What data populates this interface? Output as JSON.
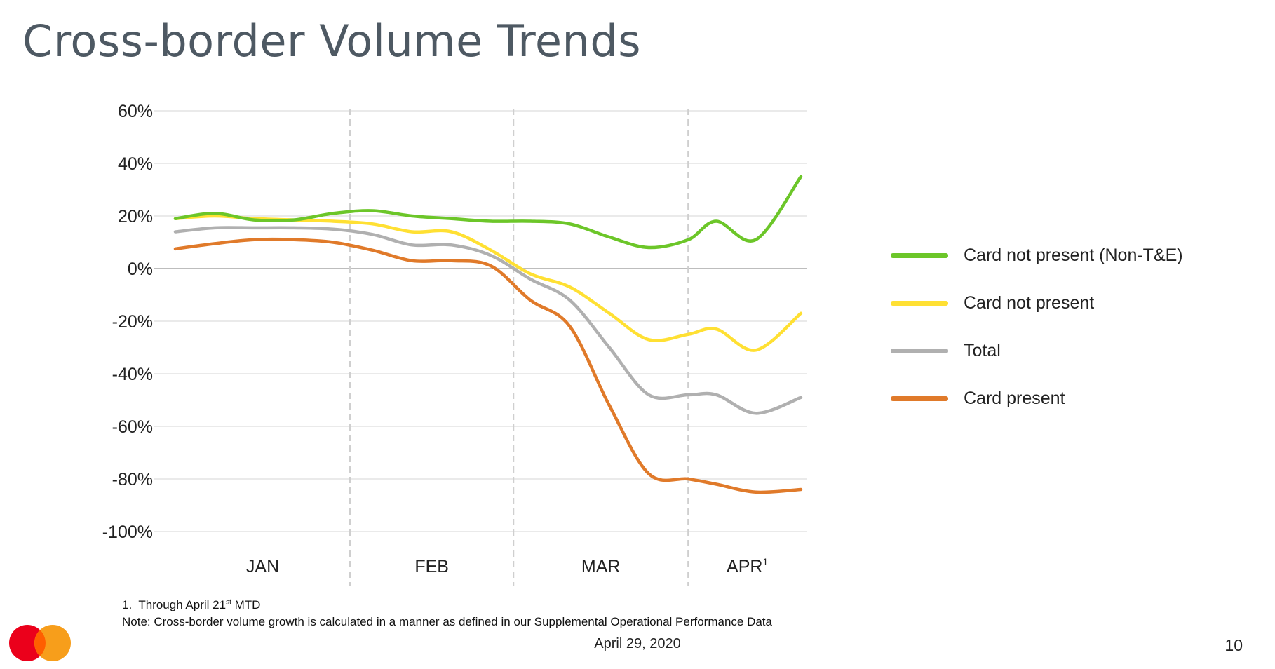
{
  "slide": {
    "title": "Cross-border Volume Trends",
    "footnote_number": "1.",
    "footnote_text_before": "Through April 21",
    "footnote_superscript": "st",
    "footnote_text_after": " MTD",
    "note": "Note: Cross-border volume growth is calculated in a manner as defined in our Supplemental Operational Performance Data",
    "date": "April 29, 2020",
    "page_number": "10",
    "logo_icon": "mastercard-logo-icon"
  },
  "chart_data": {
    "type": "line",
    "title": "",
    "xlabel": "",
    "ylabel": "",
    "ylim": [
      -100,
      60
    ],
    "yticks": [
      60,
      40,
      20,
      0,
      -20,
      -40,
      -60,
      -80,
      -100
    ],
    "ytick_labels": [
      "60%",
      "40%",
      "20%",
      "0%",
      "-20%",
      "-40%",
      "-60%",
      "-80%",
      "-100%"
    ],
    "months": [
      {
        "label": "JAN",
        "superscript": ""
      },
      {
        "label": "FEB",
        "superscript": ""
      },
      {
        "label": "MAR",
        "superscript": ""
      },
      {
        "label": "APR",
        "superscript": "1"
      }
    ],
    "x_domain": [
      "2020-01-01",
      "2020-04-21"
    ],
    "month_dividers": [
      "2020-02-01",
      "2020-03-01",
      "2020-04-01"
    ],
    "grid": "horizontal",
    "legend_position": "right",
    "series": [
      {
        "name": "Card not present (Non-T&E)",
        "color": "#6cc629",
        "points": [
          [
            "2020-01-01",
            19
          ],
          [
            "2020-01-08",
            21
          ],
          [
            "2020-01-15",
            18.5
          ],
          [
            "2020-01-22",
            18.5
          ],
          [
            "2020-01-29",
            21
          ],
          [
            "2020-02-05",
            22
          ],
          [
            "2020-02-12",
            20
          ],
          [
            "2020-02-19",
            19
          ],
          [
            "2020-02-26",
            18
          ],
          [
            "2020-03-04",
            18
          ],
          [
            "2020-03-11",
            17
          ],
          [
            "2020-03-18",
            12
          ],
          [
            "2020-03-25",
            8
          ],
          [
            "2020-04-01",
            11
          ],
          [
            "2020-04-06",
            18
          ],
          [
            "2020-04-13",
            11
          ],
          [
            "2020-04-21",
            35
          ]
        ]
      },
      {
        "name": "Card not present",
        "color": "#ffe033",
        "points": [
          [
            "2020-01-01",
            19
          ],
          [
            "2020-01-08",
            20
          ],
          [
            "2020-01-15",
            19
          ],
          [
            "2020-01-22",
            18.5
          ],
          [
            "2020-01-29",
            18
          ],
          [
            "2020-02-05",
            17
          ],
          [
            "2020-02-12",
            14
          ],
          [
            "2020-02-19",
            14
          ],
          [
            "2020-02-26",
            7
          ],
          [
            "2020-03-04",
            -2
          ],
          [
            "2020-03-11",
            -7
          ],
          [
            "2020-03-18",
            -17
          ],
          [
            "2020-03-25",
            -27
          ],
          [
            "2020-04-01",
            -25
          ],
          [
            "2020-04-06",
            -23
          ],
          [
            "2020-04-13",
            -31
          ],
          [
            "2020-04-21",
            -17
          ]
        ]
      },
      {
        "name": "Total",
        "color": "#b0b0b0",
        "points": [
          [
            "2020-01-01",
            14
          ],
          [
            "2020-01-08",
            15.5
          ],
          [
            "2020-01-15",
            15.5
          ],
          [
            "2020-01-22",
            15.5
          ],
          [
            "2020-01-29",
            15
          ],
          [
            "2020-02-05",
            13
          ],
          [
            "2020-02-12",
            9
          ],
          [
            "2020-02-19",
            9
          ],
          [
            "2020-02-26",
            5
          ],
          [
            "2020-03-04",
            -4
          ],
          [
            "2020-03-11",
            -12
          ],
          [
            "2020-03-18",
            -30
          ],
          [
            "2020-03-25",
            -48
          ],
          [
            "2020-04-01",
            -48
          ],
          [
            "2020-04-06",
            -48
          ],
          [
            "2020-04-13",
            -55
          ],
          [
            "2020-04-21",
            -49
          ]
        ]
      },
      {
        "name": "Card present",
        "color": "#e07a2a",
        "points": [
          [
            "2020-01-01",
            7.5
          ],
          [
            "2020-01-08",
            9.5
          ],
          [
            "2020-01-15",
            11
          ],
          [
            "2020-01-22",
            11
          ],
          [
            "2020-01-29",
            10
          ],
          [
            "2020-02-05",
            7
          ],
          [
            "2020-02-12",
            3
          ],
          [
            "2020-02-19",
            3
          ],
          [
            "2020-02-26",
            1
          ],
          [
            "2020-03-04",
            -12
          ],
          [
            "2020-03-11",
            -22
          ],
          [
            "2020-03-18",
            -52
          ],
          [
            "2020-03-25",
            -78
          ],
          [
            "2020-04-01",
            -80
          ],
          [
            "2020-04-06",
            -82
          ],
          [
            "2020-04-13",
            -85
          ],
          [
            "2020-04-21",
            -84
          ]
        ]
      }
    ]
  }
}
